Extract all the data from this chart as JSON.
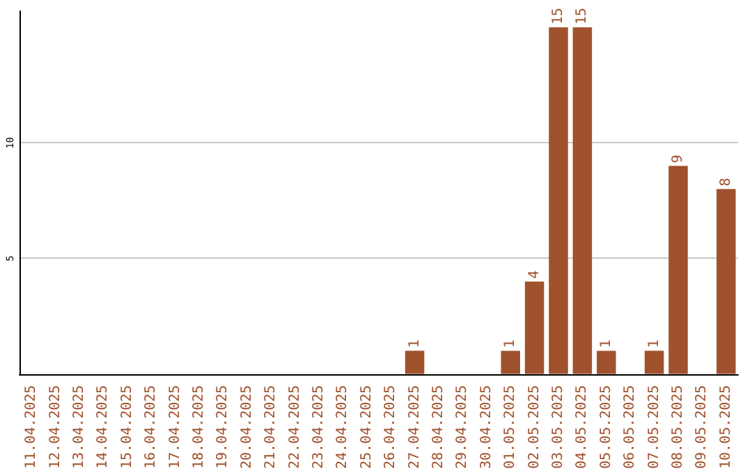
{
  "chart_data": {
    "type": "bar",
    "categories": [
      "11.04.2025",
      "12.04.2025",
      "13.04.2025",
      "14.04.2025",
      "15.04.2025",
      "16.04.2025",
      "17.04.2025",
      "18.04.2025",
      "19.04.2025",
      "20.04.2025",
      "21.04.2025",
      "22.04.2025",
      "23.04.2025",
      "24.04.2025",
      "25.04.2025",
      "26.04.2025",
      "27.04.2025",
      "28.04.2025",
      "29.04.2025",
      "30.04.2025",
      "01.05.2025",
      "02.05.2025",
      "03.05.2025",
      "04.05.2025",
      "05.05.2025",
      "06.05.2025",
      "07.05.2025",
      "08.05.2025",
      "09.05.2025",
      "10.05.2025"
    ],
    "values": [
      0,
      0,
      0,
      0,
      0,
      0,
      0,
      0,
      0,
      0,
      0,
      0,
      0,
      0,
      0,
      0,
      1,
      0,
      0,
      0,
      1,
      4,
      15,
      15,
      1,
      0,
      1,
      9,
      0,
      8
    ],
    "value_labels": [
      null,
      null,
      null,
      null,
      null,
      null,
      null,
      null,
      null,
      null,
      null,
      null,
      null,
      null,
      null,
      null,
      "1",
      null,
      null,
      null,
      "1",
      "4",
      "15",
      "15",
      "1",
      null,
      "1",
      "9",
      null,
      "8"
    ],
    "color": "#a0522d",
    "ylim": [
      0,
      15.7
    ],
    "yticks": [
      5,
      10
    ],
    "grid": "y"
  }
}
